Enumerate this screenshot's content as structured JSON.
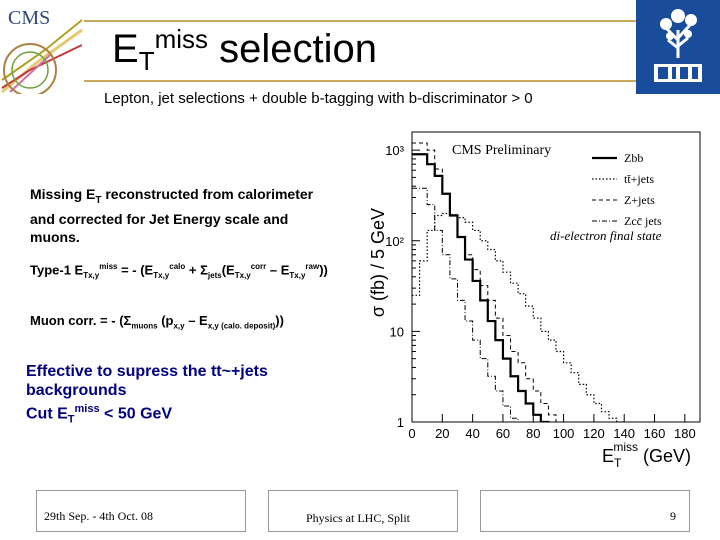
{
  "header": {
    "cms_logo_text": "CMS",
    "title_main": "E",
    "title_sub": "T",
    "title_sup": "miss",
    "title_rest": " selection",
    "subtitle": "Lepton, jet selections + double b-tagging with b-discriminator > 0"
  },
  "text": {
    "missing_line1": "Missing E",
    "missing_sub": "T",
    "missing_line1b": " reconstructed from calorimeter",
    "missing_line2": "and corrected for Jet Energy scale and",
    "missing_line3": "muons.",
    "type1_a": "Type-1 E",
    "type1_a_sub": "Tx,y",
    "type1_a_sup": "miss",
    "type1_b": " = - (E",
    "type1_b_sub": "Tx,y",
    "type1_b_sup": "calo",
    "type1_c": " + Σ",
    "type1_c_sub": "jets",
    "type1_d": "(E",
    "type1_d_sub": "Tx,y",
    "type1_d_sup": "corr",
    "type1_e": " – E",
    "type1_e_sub": "Tx,y",
    "type1_e_sup": "raw",
    "type1_f": "))",
    "muon_a": "Muon corr. = - (Σ",
    "muon_a_sub": "muons",
    "muon_b": " (p",
    "muon_b_sub": "x,y",
    "muon_c": " – E",
    "muon_c_sub": "x,y (calo. deposit)",
    "muon_d": "))",
    "effective_line1": "Effective to supress the tt~+jets",
    "effective_line2": "backgrounds",
    "cut_a": "Cut  E",
    "cut_sub": "T",
    "cut_sup": "miss",
    "cut_b": "  < 50 GeV"
  },
  "chart_data": {
    "type": "line",
    "title": "CMS Preliminary",
    "annotation": "di-electron final state",
    "ylabel": "σ (fb) / 5 GeV",
    "xlabel_main": "E",
    "xlabel_sub": "T",
    "xlabel_sup": "miss",
    "xlabel_unit": " (GeV)",
    "x_ticks": [
      "0",
      "20",
      "40",
      "60",
      "80",
      "100",
      "120",
      "140",
      "160",
      "180"
    ],
    "y_ticks": [
      "1",
      "10",
      "10²",
      "10³"
    ],
    "xlim": [
      0,
      190
    ],
    "ylim_log10": [
      0,
      3.2
    ],
    "series": [
      {
        "name": "Zbb",
        "style": "solid-thick",
        "x": [
          0,
          5,
          10,
          15,
          20,
          25,
          30,
          35,
          40,
          45,
          50,
          55,
          60,
          65,
          70,
          75,
          80,
          85,
          90,
          95,
          100,
          105,
          110,
          115,
          120
        ],
        "y": [
          900,
          900,
          700,
          520,
          330,
          190,
          110,
          62,
          36,
          22,
          13,
          8,
          5,
          3.2,
          2.2,
          1.6,
          1.2,
          1,
          0.7,
          0.5,
          0.4,
          0.3,
          0.2,
          0.15,
          0.1
        ]
      },
      {
        "name": "tt̄+jets",
        "style": "dotted",
        "x": [
          0,
          5,
          10,
          15,
          20,
          25,
          30,
          35,
          40,
          45,
          50,
          55,
          60,
          65,
          70,
          75,
          80,
          85,
          90,
          95,
          100,
          105,
          110,
          115,
          120,
          125,
          130,
          135,
          140,
          150,
          160,
          170,
          180
        ],
        "y": [
          25,
          60,
          130,
          190,
          200,
          195,
          180,
          160,
          130,
          100,
          80,
          60,
          45,
          34,
          26,
          19,
          14,
          10,
          8,
          6,
          4.5,
          3.5,
          2.6,
          2,
          1.6,
          1.3,
          1.1,
          1,
          0.9,
          0.7,
          0.6,
          0.5,
          0.4
        ]
      },
      {
        "name": "Z+jets",
        "style": "dashed",
        "x": [
          0,
          5,
          10,
          15,
          20,
          25,
          30,
          35,
          40,
          45,
          50,
          55,
          60,
          65,
          70,
          75,
          80,
          85,
          90,
          95,
          100
        ],
        "y": [
          1200,
          1200,
          1000,
          620,
          330,
          190,
          110,
          70,
          48,
          32,
          22,
          14,
          9,
          6,
          4.5,
          3,
          2.2,
          1.6,
          1.2,
          1,
          0.8
        ]
      },
      {
        "name": "Zcc̄ jets",
        "style": "dash-dot",
        "x": [
          0,
          5,
          10,
          15,
          20,
          25,
          30,
          35,
          40,
          45,
          50,
          55,
          60,
          65,
          70,
          75,
          80
        ],
        "y": [
          380,
          380,
          250,
          130,
          70,
          38,
          22,
          13,
          8,
          5,
          3.2,
          2.2,
          1.5,
          1.1,
          0.8,
          0.6,
          0.4
        ]
      }
    ]
  },
  "footer": {
    "date": "29th Sep. - 4th Oct.  08",
    "event": "Physics at LHC, Split",
    "page": "9"
  }
}
